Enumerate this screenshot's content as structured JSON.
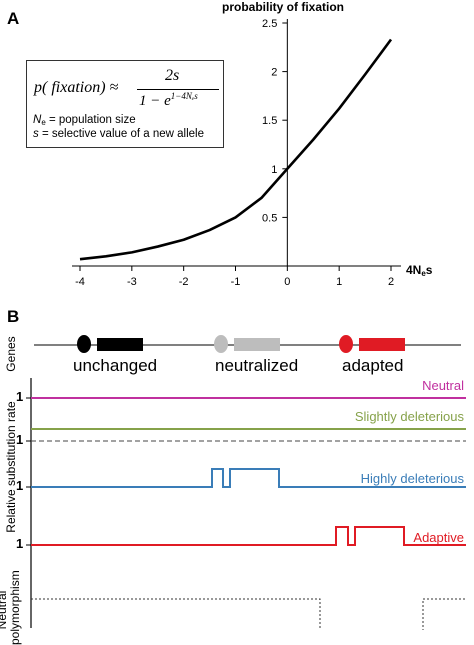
{
  "panel_a": {
    "label": "A",
    "formula": {
      "lhs": "p( fixation) ≈",
      "numerator": "2s",
      "denominator_base": "1 − e",
      "denominator_exp": "1−4Nₑs"
    },
    "definitions": [
      {
        "symbol": "N",
        "subscript": "e",
        "text": "= population size"
      },
      {
        "symbol": "s",
        "subscript": "",
        "text": "= selective value of a new allele"
      }
    ]
  },
  "chart_data": {
    "type": "line",
    "title": "probability of fixation",
    "xlabel_main": "4N",
    "xlabel_sub": "e",
    "xlabel_tail": "s",
    "ylabel": "",
    "xlim": [
      -4,
      2
    ],
    "ylim": [
      0,
      2.5
    ],
    "x_ticks": [
      "-4",
      "-3",
      "-2",
      "-1",
      "0",
      "1",
      "2"
    ],
    "y_ticks": [
      "0.5",
      "1",
      "1.5",
      "2",
      "2.5"
    ],
    "series": [
      {
        "x": [
          -4.0,
          -3.5,
          -3.0,
          -2.5,
          -2.0,
          -1.5,
          -1.0,
          -0.5,
          0.0,
          0.5,
          1.0,
          1.5,
          2.0
        ],
        "values": [
          0.07,
          0.1,
          0.14,
          0.2,
          0.27,
          0.37,
          0.5,
          0.7,
          1.0,
          1.3,
          1.62,
          1.97,
          2.33
        ]
      }
    ]
  },
  "panel_b": {
    "label": "B",
    "genes_label": "Genes",
    "gene_labels": [
      "unchanged",
      "neutralized",
      "adapted"
    ],
    "y_axis_label": "Relative substitution rate",
    "polymorphism_label": "Neutral polymorphism",
    "tick_one": "1",
    "tracks": [
      {
        "name": "Neutral",
        "color": "#c0309f"
      },
      {
        "name": "Slightly deleterious",
        "color": "#86a24a"
      },
      {
        "name": "Highly deleterious",
        "color": "#3a7db8"
      },
      {
        "name": "Adaptive",
        "color": "#e01b24"
      }
    ],
    "colors": {
      "unchanged": "#000000",
      "neutralized": "#bdbdbd",
      "adapted": "#e01b24"
    }
  }
}
